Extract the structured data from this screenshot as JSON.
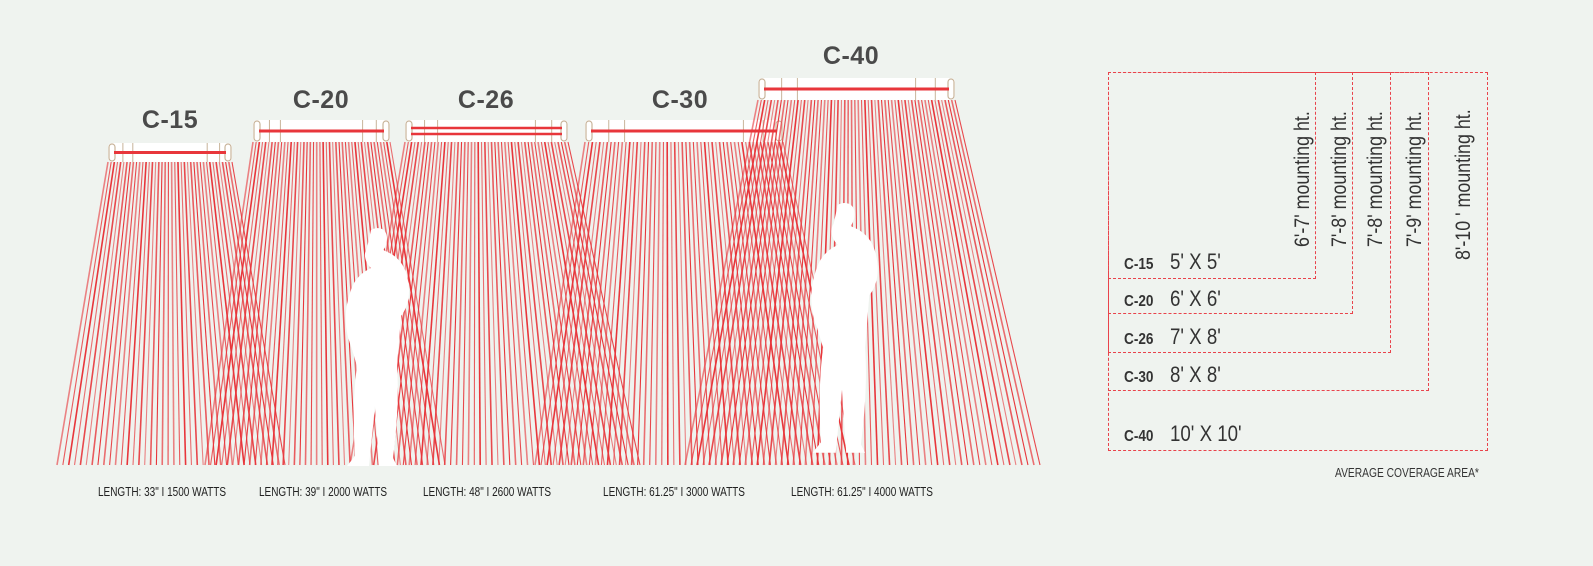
{
  "colors": {
    "beam": "#e8363b",
    "background": "#eff3ef",
    "dashed_border": "#e9434b",
    "heater_body": "#ffffff",
    "heater_cap": "#c8b49a"
  },
  "heaters": [
    {
      "model": "C-15",
      "spec": "LENGTH: 33\" I 1500 WATTS"
    },
    {
      "model": "C-20",
      "spec": "LENGTH: 39\" I 2000 WATTS"
    },
    {
      "model": "C-26",
      "spec": "LENGTH: 48\" I 2600 WATTS"
    },
    {
      "model": "C-30",
      "spec": "LENGTH: 61.25\" I 3000 WATTS"
    },
    {
      "model": "C-40",
      "spec": "LENGTH: 61.25\" I 4000 WATTS"
    }
  ],
  "coverage": {
    "rows": [
      {
        "model": "C-15",
        "area": "5' X 5'",
        "mounting": "6'-7' mounting ht."
      },
      {
        "model": "C-20",
        "area": "6' X 6'",
        "mounting": "7'-8' mounting ht."
      },
      {
        "model": "C-26",
        "area": "7' X 8'",
        "mounting": "7'-8' mounting ht."
      },
      {
        "model": "C-30",
        "area": "8' X 8'",
        "mounting": "7'-9' mounting ht."
      },
      {
        "model": "C-40",
        "area": "10' X 10'",
        "mounting": "8'-10 ' mounting ht."
      }
    ],
    "footnote": "AVERAGE COVERAGE AREA*"
  }
}
